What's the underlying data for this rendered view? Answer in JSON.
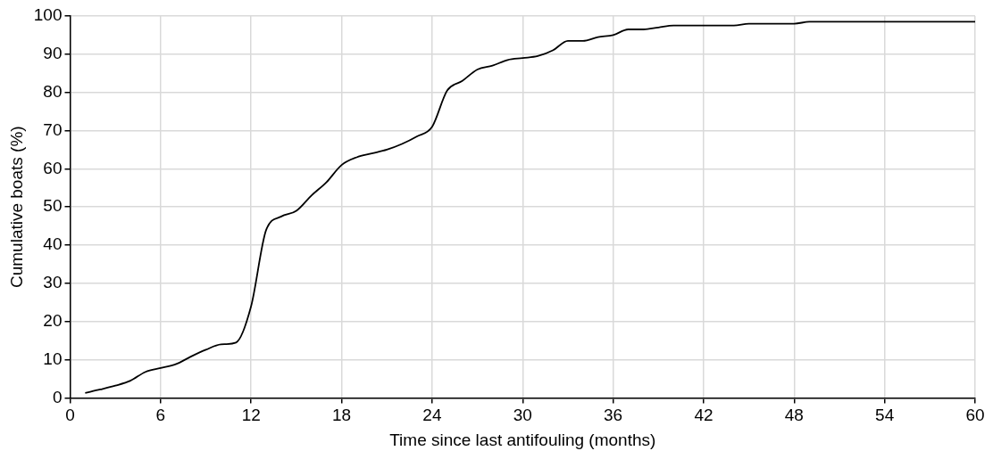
{
  "chart_data": {
    "type": "line",
    "xlabel": "Time since last antifouling (months)",
    "ylabel": "Cumulative boats (%)",
    "x": [
      1,
      2,
      3,
      4,
      5,
      6,
      7,
      8,
      9,
      10,
      11,
      12,
      13,
      14,
      15,
      16,
      17,
      18,
      19,
      20,
      21,
      22,
      23,
      24,
      25,
      26,
      27,
      28,
      29,
      30,
      31,
      32,
      33,
      34,
      35,
      36,
      37,
      38,
      39,
      40,
      41,
      42,
      43,
      44,
      45,
      46,
      47,
      48,
      49,
      50,
      51,
      52,
      53,
      54,
      55,
      56,
      57,
      58,
      59,
      60
    ],
    "series": [
      {
        "color": "#000000",
        "values": [
          1.3,
          2.2,
          3.2,
          4.5,
          6.8,
          7.8,
          8.8,
          10.8,
          12.6,
          14,
          14.5,
          24,
          44,
          47.5,
          49,
          53,
          56.5,
          61,
          63,
          64,
          65,
          66.5,
          68.5,
          71,
          80.5,
          83,
          86,
          87,
          88.5,
          89,
          89.5,
          91,
          93.5,
          93.5,
          94.5,
          95,
          96.5,
          96.5,
          97,
          97.5,
          97.5,
          97.5,
          97.5,
          97.5,
          98,
          98,
          98,
          98,
          98.5,
          98.5,
          98.5,
          98.5,
          98.5,
          98.5,
          98.5,
          98.5,
          98.5,
          98.5,
          98.5,
          98.5
        ]
      }
    ],
    "xlim": [
      0,
      60
    ],
    "xticks": [
      0,
      6,
      12,
      18,
      24,
      30,
      36,
      42,
      48,
      54,
      60
    ],
    "ylim": [
      0,
      100
    ],
    "yticks": [
      0,
      10,
      20,
      30,
      40,
      50,
      60,
      70,
      80,
      90,
      100
    ],
    "grid": true,
    "legend": false,
    "marker": "none",
    "line_style": "solid"
  }
}
